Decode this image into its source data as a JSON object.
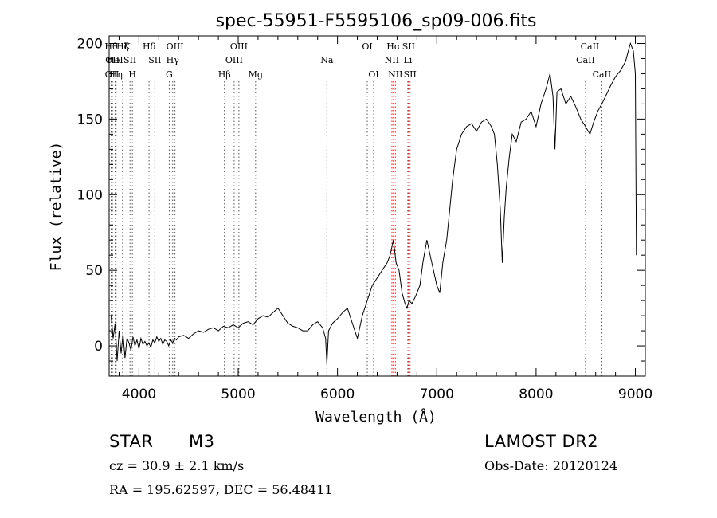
{
  "chart_data": {
    "type": "line",
    "title": "spec-55951-F5595106_sp09-006.fits",
    "xlabel": "Wavelength (Å)",
    "ylabel": "Flux (relative)",
    "xlim": [
      3700,
      9100
    ],
    "ylim": [
      -20,
      205
    ],
    "x_ticks": [
      4000,
      5000,
      6000,
      7000,
      8000,
      9000
    ],
    "y_ticks": [
      0,
      50,
      100,
      150,
      200
    ],
    "grid": false,
    "series": [
      {
        "x": [
          3720,
          3740,
          3760,
          3780,
          3800,
          3820,
          3840,
          3860,
          3880,
          3900,
          3920,
          3940,
          3960,
          3980,
          4000,
          4020,
          4040,
          4060,
          4080,
          4100,
          4120,
          4140,
          4160,
          4180,
          4200,
          4220,
          4240,
          4260,
          4280,
          4300,
          4320,
          4340,
          4360,
          4380,
          4400,
          4450,
          4500,
          4550,
          4600,
          4650,
          4700,
          4750,
          4800,
          4850,
          4900,
          4950,
          5000,
          5050,
          5100,
          5150,
          5200,
          5250,
          5300,
          5350,
          5400,
          5450,
          5500,
          5550,
          5600,
          5650,
          5700,
          5750,
          5800,
          5850,
          5880,
          5893,
          5910,
          5950,
          6000,
          6050,
          6100,
          6150,
          6200,
          6250,
          6300,
          6350,
          6400,
          6450,
          6500,
          6530,
          6563,
          6590,
          6620,
          6650,
          6680,
          6700,
          6720,
          6750,
          6780,
          6800,
          6830,
          6860,
          6900,
          6950,
          7000,
          7030,
          7060,
          7100,
          7130,
          7160,
          7200,
          7250,
          7300,
          7350,
          7400,
          7450,
          7500,
          7550,
          7580,
          7610,
          7640,
          7660,
          7680,
          7700,
          7730,
          7760,
          7800,
          7850,
          7900,
          7950,
          8000,
          8050,
          8100,
          8140,
          8170,
          8190,
          8210,
          8250,
          8300,
          8350,
          8400,
          8450,
          8498,
          8542,
          8580,
          8620,
          8662,
          8700,
          8750,
          8800,
          8850,
          8900,
          8950,
          8980,
          9000,
          9010
        ],
        "y": [
          20,
          5,
          15,
          -10,
          10,
          -5,
          8,
          -8,
          5,
          2,
          -3,
          6,
          0,
          4,
          -2,
          5,
          1,
          3,
          0,
          2,
          -1,
          4,
          2,
          6,
          3,
          5,
          1,
          4,
          3,
          0,
          4,
          2,
          5,
          4,
          6,
          7,
          5,
          8,
          10,
          9,
          11,
          12,
          10,
          13,
          12,
          14,
          12,
          15,
          16,
          14,
          18,
          20,
          19,
          22,
          25,
          20,
          15,
          13,
          12,
          10,
          10,
          14,
          16,
          12,
          5,
          -12,
          10,
          15,
          18,
          22,
          25,
          15,
          5,
          20,
          30,
          40,
          45,
          50,
          55,
          60,
          70,
          55,
          50,
          35,
          28,
          25,
          30,
          28,
          32,
          35,
          40,
          55,
          70,
          55,
          40,
          35,
          55,
          70,
          90,
          110,
          130,
          140,
          145,
          147,
          142,
          148,
          150,
          145,
          140,
          120,
          90,
          55,
          85,
          105,
          125,
          140,
          135,
          148,
          150,
          155,
          145,
          160,
          170,
          180,
          165,
          130,
          168,
          170,
          160,
          165,
          158,
          150,
          145,
          140,
          148,
          155,
          160,
          165,
          172,
          178,
          182,
          188,
          200,
          195,
          180,
          60
        ]
      }
    ],
    "line_markers": [
      {
        "x": 3720,
        "row": 1,
        "label": "Hθ"
      },
      {
        "x": 3733,
        "row": 2,
        "label": "OII"
      },
      {
        "x": 3728,
        "row": 3,
        "label": "OII"
      },
      {
        "x": 3760,
        "row": 2,
        "label": "HeI"
      },
      {
        "x": 3770,
        "row": 3,
        "label": "Hη"
      },
      {
        "x": 3835,
        "row": 1,
        "label": "Hζ"
      },
      {
        "x": 3880,
        "row": 1,
        "label": "K"
      },
      {
        "x": 3910,
        "row": 2,
        "label": "SII"
      },
      {
        "x": 3934,
        "row": 3,
        "label": "H"
      },
      {
        "x": 4102,
        "row": 1,
        "label": "Hδ"
      },
      {
        "x": 4160,
        "row": 2,
        "label": "SII"
      },
      {
        "x": 4305,
        "row": 3,
        "label": "G"
      },
      {
        "x": 4340,
        "row": 2,
        "label": "Hγ"
      },
      {
        "x": 4363,
        "row": 1,
        "label": "OIII"
      },
      {
        "x": 4861,
        "row": 3,
        "label": "Hβ"
      },
      {
        "x": 4959,
        "row": 2,
        "label": "OIII"
      },
      {
        "x": 5007,
        "row": 1,
        "label": "OIII"
      },
      {
        "x": 5175,
        "row": 3,
        "label": "Mg"
      },
      {
        "x": 5893,
        "row": 2,
        "label": "Na"
      },
      {
        "x": 6300,
        "row": 1,
        "label": "OI"
      },
      {
        "x": 6364,
        "row": 3,
        "label": "OI"
      },
      {
        "x": 6548,
        "row": 2,
        "label": "NII"
      },
      {
        "x": 6563,
        "row": 1,
        "label": "Hα"
      },
      {
        "x": 6583,
        "row": 3,
        "label": "NII"
      },
      {
        "x": 6708,
        "row": 2,
        "label": "Li"
      },
      {
        "x": 6716,
        "row": 1,
        "label": "SII"
      },
      {
        "x": 6731,
        "row": 3,
        "label": "SII"
      },
      {
        "x": 8498,
        "row": 2,
        "label": "CaII"
      },
      {
        "x": 8542,
        "row": 1,
        "label": "CaII"
      },
      {
        "x": 8662,
        "row": 3,
        "label": "CaII"
      }
    ]
  },
  "info": {
    "class": "STAR",
    "subclass": "M3",
    "survey": "LAMOST DR2",
    "cz": "cz = 30.9 ± 2.1 km/s",
    "obs_date": "Obs-Date: 20120124",
    "coords": "RA = 195.62597, DEC =  56.48411"
  }
}
